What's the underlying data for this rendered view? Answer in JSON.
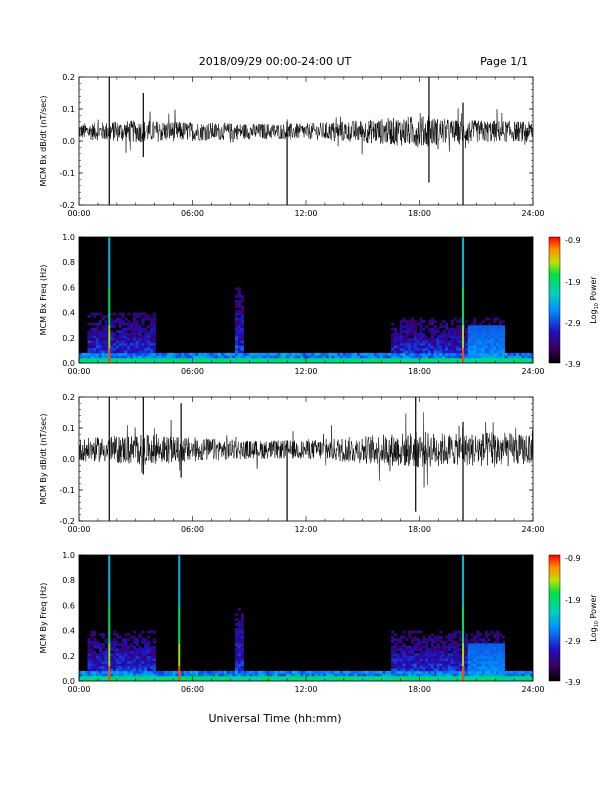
{
  "header": {
    "title": "2018/09/29  00:00-24:00 UT",
    "page": "Page 1/1"
  },
  "x_axis_label": "Universal Time (hh:mm)",
  "colorbar": {
    "ticks": [
      "-0.9",
      "-1.9",
      "-2.9",
      "-3.9"
    ],
    "label_base": "Log",
    "label_sub": "10",
    "label_rest": " Power"
  },
  "chart_data": [
    {
      "type": "line",
      "ylabel": "MCM Bx dB/dt (nT/sec)",
      "ylim": [
        -0.2,
        0.2
      ],
      "yticks": [
        "0.2",
        "0.1",
        "0.0",
        "-0.1",
        "-0.2"
      ],
      "xlim_hours": [
        0,
        24
      ],
      "xticks": [
        "00:00",
        "06:00",
        "12:00",
        "18:00",
        "24:00"
      ],
      "baseline": 0.03,
      "noise_envelope": {
        "x_hours": [
          0,
          3,
          6,
          9,
          12,
          16,
          18,
          20,
          22,
          24
        ],
        "amplitude": [
          0.025,
          0.035,
          0.03,
          0.025,
          0.025,
          0.04,
          0.05,
          0.035,
          0.035,
          0.03
        ]
      },
      "spikes": [
        {
          "x_hours": 1.6,
          "low": -0.2,
          "high": 0.2
        },
        {
          "x_hours": 3.4,
          "low": -0.05,
          "high": 0.15
        },
        {
          "x_hours": 11.0,
          "low": -0.2,
          "high": 0.06
        },
        {
          "x_hours": 18.5,
          "low": -0.13,
          "high": 0.2
        },
        {
          "x_hours": 20.3,
          "low": -0.2,
          "high": 0.12
        }
      ]
    },
    {
      "type": "heatmap",
      "ylabel": "MCM Bx Freq (Hz)",
      "ylim": [
        0,
        1.0
      ],
      "yticks": [
        "1.0",
        "0.8",
        "0.6",
        "0.4",
        "0.2",
        "0.0"
      ],
      "xlim_hours": [
        0,
        24
      ],
      "xticks": [
        "00:00",
        "06:00",
        "12:00",
        "18:00",
        "24:00"
      ],
      "zlim": [
        -3.9,
        -0.9
      ],
      "vertical_streaks_hours": [
        1.6,
        20.3
      ],
      "activity_regions": [
        {
          "x_hours": [
            0.5,
            4.0
          ],
          "y_hz": [
            0.0,
            0.4
          ]
        },
        {
          "x_hours": 8.5,
          "y_hz": [
            0.0,
            0.6
          ]
        },
        {
          "x_hours": [
            16.5,
            22.5
          ],
          "y_hz": [
            0.0,
            0.35
          ]
        }
      ]
    },
    {
      "type": "line",
      "ylabel": "MCM By dB/dt (nT/sec)",
      "ylim": [
        -0.2,
        0.2
      ],
      "yticks": [
        "0.2",
        "0.1",
        "0.0",
        "-0.1",
        "-0.2"
      ],
      "xlim_hours": [
        0,
        24
      ],
      "xticks": [
        "00:00",
        "06:00",
        "12:00",
        "18:00",
        "24:00"
      ],
      "baseline": 0.03,
      "noise_envelope": {
        "x_hours": [
          0,
          3,
          6,
          9,
          12,
          16,
          18,
          20,
          22,
          24
        ],
        "amplitude": [
          0.035,
          0.05,
          0.04,
          0.03,
          0.03,
          0.05,
          0.06,
          0.05,
          0.06,
          0.045
        ]
      },
      "spikes": [
        {
          "x_hours": 1.6,
          "low": -0.2,
          "high": 0.2
        },
        {
          "x_hours": 3.4,
          "low": -0.05,
          "high": 0.2
        },
        {
          "x_hours": 5.4,
          "low": -0.06,
          "high": 0.18
        },
        {
          "x_hours": 11.0,
          "low": -0.2,
          "high": 0.06
        },
        {
          "x_hours": 17.8,
          "low": -0.17,
          "high": 0.2
        },
        {
          "x_hours": 20.3,
          "low": -0.2,
          "high": 0.12
        }
      ]
    },
    {
      "type": "heatmap",
      "ylabel": "MCM By Freq (Hz)",
      "ylim": [
        0,
        1.0
      ],
      "yticks": [
        "1.0",
        "0.8",
        "0.6",
        "0.4",
        "0.2",
        "0.0"
      ],
      "xlim_hours": [
        0,
        24
      ],
      "xticks": [
        "00:00",
        "06:00",
        "12:00",
        "18:00",
        "24:00"
      ],
      "zlim": [
        -3.9,
        -0.9
      ],
      "vertical_streaks_hours": [
        1.6,
        5.3,
        20.3
      ],
      "activity_regions": [
        {
          "x_hours": [
            0.5,
            4.0
          ],
          "y_hz": [
            0.0,
            0.4
          ]
        },
        {
          "x_hours": 8.5,
          "y_hz": [
            0.0,
            0.6
          ]
        },
        {
          "x_hours": [
            16.5,
            22.5
          ],
          "y_hz": [
            0.0,
            0.4
          ]
        }
      ]
    }
  ]
}
